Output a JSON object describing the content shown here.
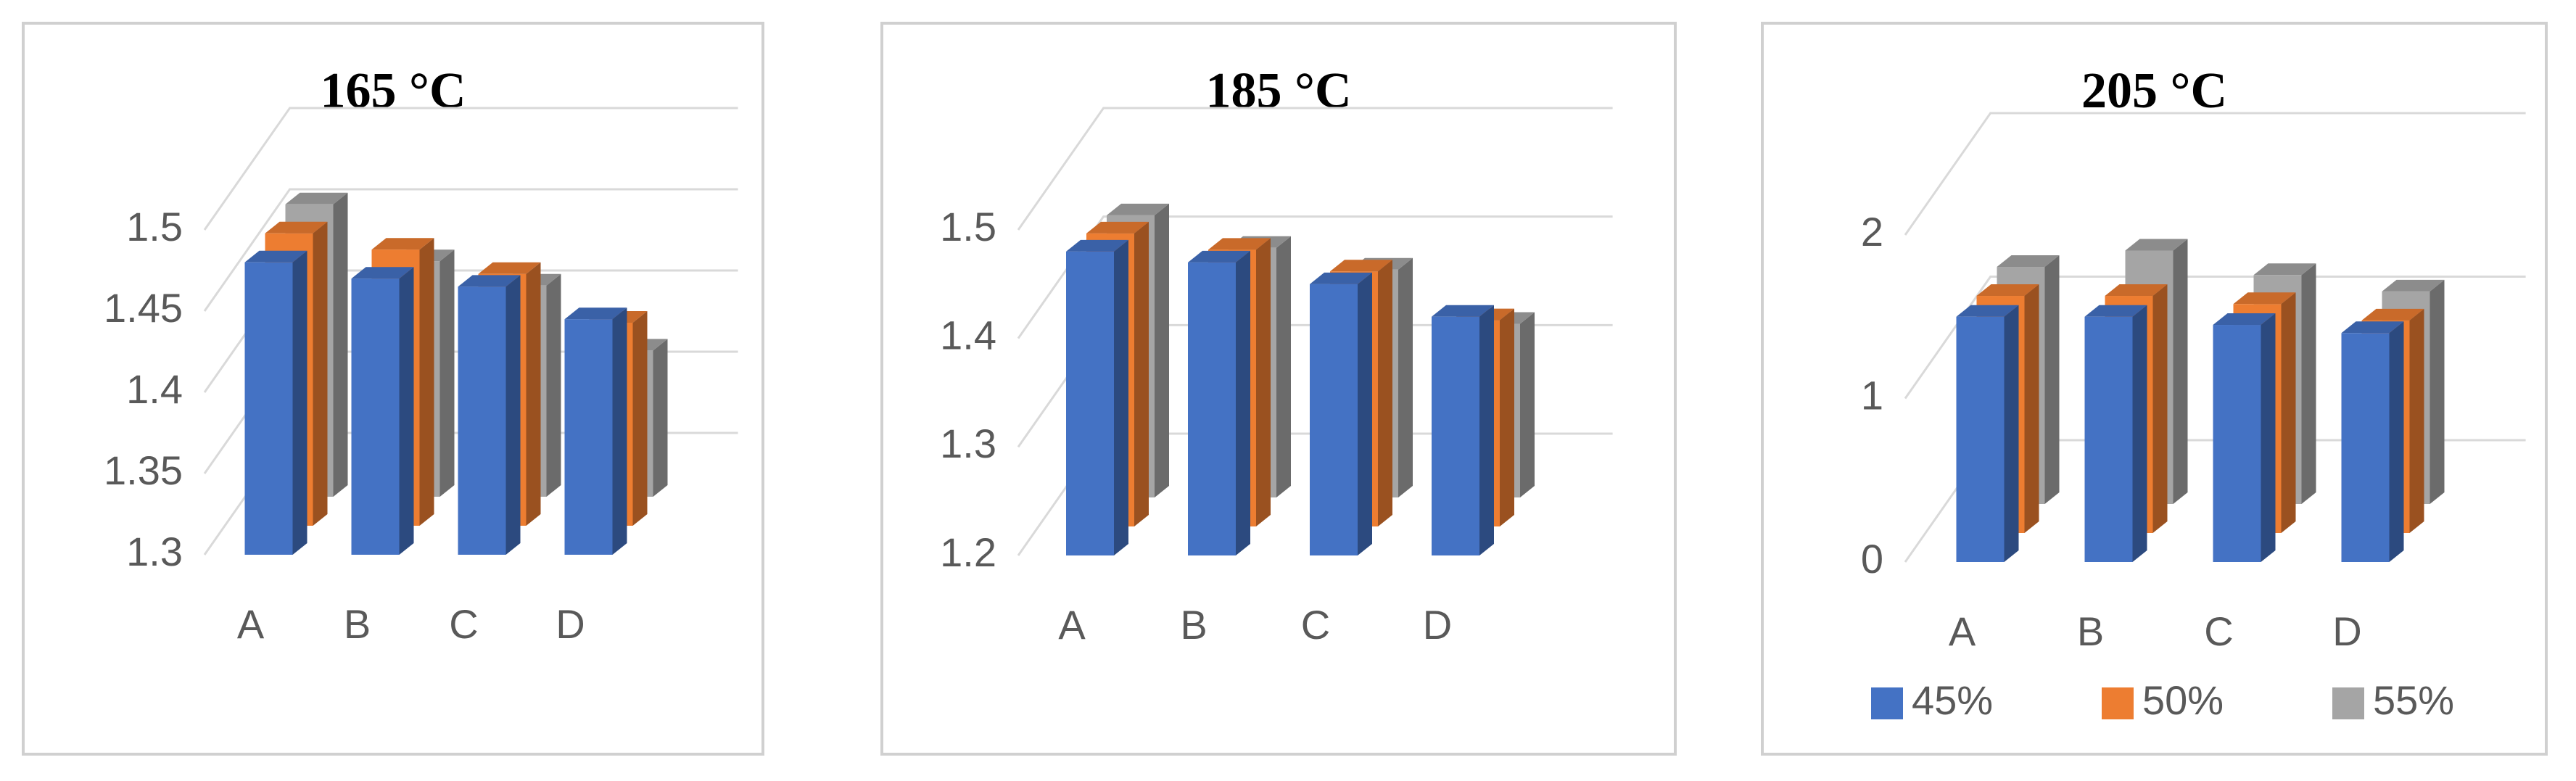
{
  "chart_data": [
    {
      "type": "bar3d",
      "title": "165 °C",
      "categories": [
        "A",
        "B",
        "C",
        "D"
      ],
      "series": [
        {
          "color": "#4472c4",
          "values": [
            1.48,
            1.47,
            1.465,
            1.445
          ]
        },
        {
          "color": "#ed7d31",
          "values": [
            1.48,
            1.47,
            1.455,
            1.425
          ]
        },
        {
          "color": "#a5a5a5",
          "values": [
            1.48,
            1.445,
            1.43,
            1.39
          ]
        }
      ],
      "ylim": [
        1.3,
        1.5
      ],
      "yticks": [
        1.3,
        1.35,
        1.4,
        1.45,
        1.5
      ],
      "grid": true
    },
    {
      "type": "bar3d",
      "title": "185 °C",
      "categories": [
        "A",
        "B",
        "C",
        "D"
      ],
      "series": [
        {
          "color": "#4472c4",
          "values": [
            1.48,
            1.47,
            1.45,
            1.42
          ]
        },
        {
          "color": "#ed7d31",
          "values": [
            1.47,
            1.455,
            1.435,
            1.39
          ]
        },
        {
          "color": "#a5a5a5",
          "values": [
            1.46,
            1.43,
            1.41,
            1.36
          ]
        }
      ],
      "ylim": [
        1.2,
        1.5
      ],
      "yticks": [
        1.2,
        1.3,
        1.4,
        1.5
      ],
      "grid": true
    },
    {
      "type": "bar3d",
      "title": "205 °C",
      "categories": [
        "A",
        "B",
        "C",
        "D"
      ],
      "series": [
        {
          "name": "45%",
          "color": "#4472c4",
          "values": [
            1.5,
            1.5,
            1.45,
            1.4
          ]
        },
        {
          "name": "50%",
          "color": "#ed7d31",
          "values": [
            1.45,
            1.45,
            1.4,
            1.3
          ]
        },
        {
          "name": "55%",
          "color": "#a5a5a5",
          "values": [
            1.45,
            1.55,
            1.4,
            1.3
          ]
        }
      ],
      "ylim": [
        0,
        2
      ],
      "yticks": [
        0,
        1,
        2
      ],
      "grid": true,
      "legend": "bottom"
    }
  ]
}
